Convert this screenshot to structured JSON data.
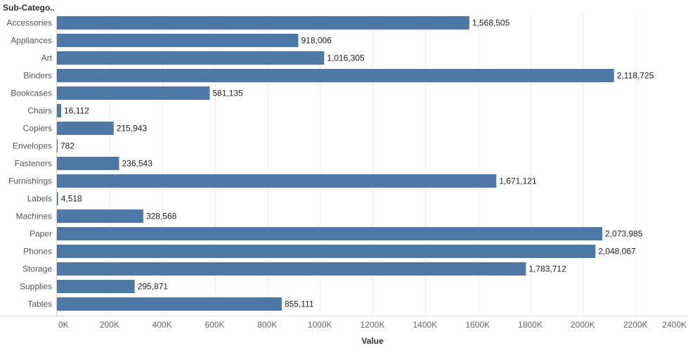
{
  "chart_data": {
    "type": "bar",
    "orientation": "horizontal",
    "row_header": "Sub-Catego..",
    "xlabel": "Value",
    "ylabel": "",
    "xlim": [
      0,
      2400000
    ],
    "x_ticks": [
      0,
      200000,
      400000,
      600000,
      800000,
      1000000,
      1200000,
      1400000,
      1600000,
      1800000,
      2000000,
      2200000,
      2400000
    ],
    "x_tick_labels": [
      "0K",
      "200K",
      "400K",
      "600K",
      "800K",
      "1000K",
      "1200K",
      "1400K",
      "1600K",
      "1800K",
      "2000K",
      "2200K",
      "2400K"
    ],
    "grid": "vertical",
    "bar_color": "#4e79a7",
    "categories": [
      "Accessories",
      "Appliances",
      "Art",
      "Binders",
      "Bookcases",
      "Chairs",
      "Copiers",
      "Envelopes",
      "Fasteners",
      "Furnishings",
      "Labels",
      "Machines",
      "Paper",
      "Phones",
      "Storage",
      "Supplies",
      "Tables"
    ],
    "values": [
      1568505,
      918006,
      1016305,
      2118725,
      581135,
      16112,
      215943,
      782,
      236543,
      1671121,
      4518,
      328568,
      2073985,
      2048067,
      1783712,
      295871,
      855111
    ],
    "value_labels": [
      "1,568,505",
      "918,006",
      "1,016,305",
      "2,118,725",
      "581,135",
      "16,112",
      "215,943",
      "782",
      "236,543",
      "1,671,121",
      "4,518",
      "328,568",
      "2,073,985",
      "2,048,067",
      "1,783,712",
      "295,871",
      "855,111"
    ]
  }
}
